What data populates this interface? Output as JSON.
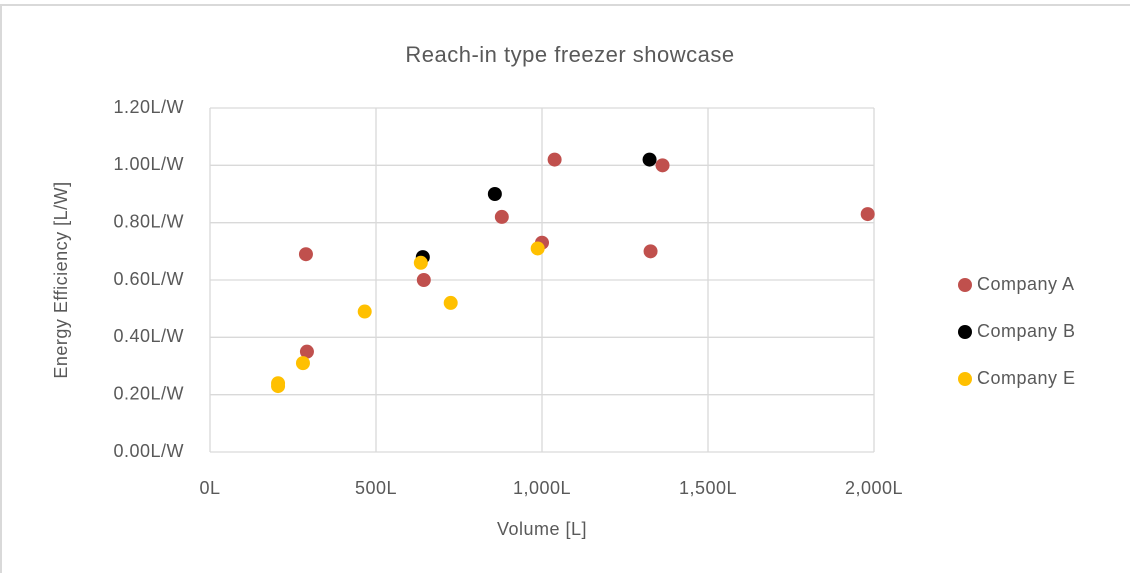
{
  "chart_data": {
    "type": "scatter",
    "title": "Reach-in type freezer showcase",
    "x_label": "Volume [L]",
    "y_label": "Energy Efficiency [L/W]",
    "xlim": [
      0,
      2000
    ],
    "ylim": [
      0,
      1.2
    ],
    "xticks": [
      {
        "value": 0,
        "label": "0L"
      },
      {
        "value": 500,
        "label": "500L"
      },
      {
        "value": 1000,
        "label": "1,000L"
      },
      {
        "value": 1500,
        "label": "1,500L"
      },
      {
        "value": 2000,
        "label": "2,000L"
      }
    ],
    "yticks": [
      {
        "value": 0,
        "label": "0.00L/W"
      },
      {
        "value": 0.2,
        "label": "0.20L/W"
      },
      {
        "value": 0.4,
        "label": "0.40L/W"
      },
      {
        "value": 0.6,
        "label": "0.60L/W"
      },
      {
        "value": 0.8,
        "label": "0.80L/W"
      },
      {
        "value": 1.0,
        "label": "1.00L/W"
      },
      {
        "value": 1.2,
        "label": "1.20L/W"
      }
    ],
    "grid": true,
    "legend": "right",
    "series": [
      {
        "name": "Company A",
        "color": "#c0504d",
        "x": [
          289,
          292,
          644,
          879,
          1000,
          1038,
          1327,
          1363,
          1981
        ],
        "values": [
          0.69,
          0.35,
          0.6,
          0.82,
          0.73,
          1.02,
          0.7,
          1.0,
          0.83
        ]
      },
      {
        "name": "Company B",
        "color": "#000000",
        "x": [
          641,
          858,
          1324
        ],
        "values": [
          0.68,
          0.9,
          1.02
        ]
      },
      {
        "name": "Company E",
        "color": "#ffc000",
        "x": [
          205,
          205,
          280,
          466,
          635,
          725,
          987
        ],
        "values": [
          0.24,
          0.23,
          0.31,
          0.49,
          0.66,
          0.52,
          0.71
        ]
      }
    ]
  }
}
